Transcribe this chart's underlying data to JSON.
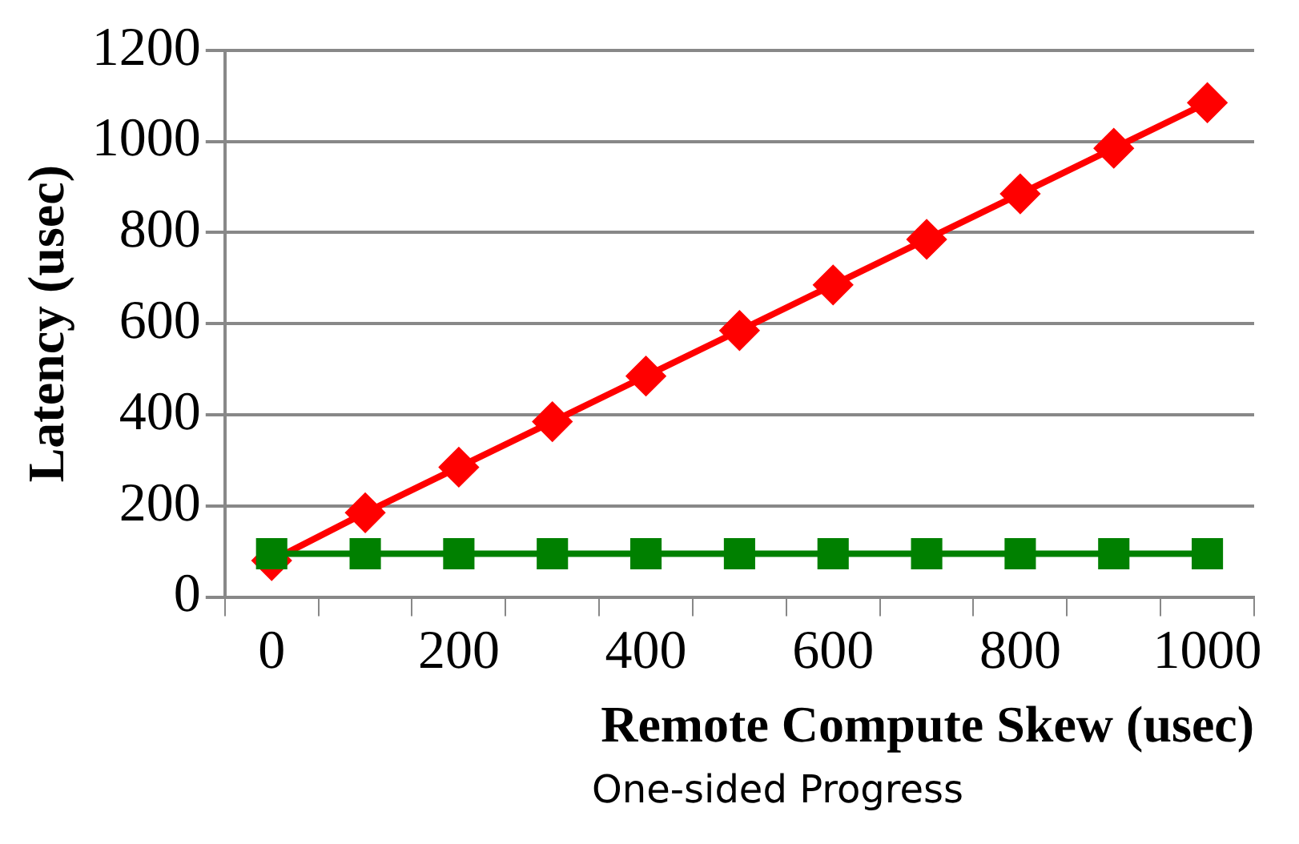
{
  "chart_data": {
    "type": "line",
    "xlabel": "Remote Compute Skew (usec)",
    "ylabel": "Latency (usec)",
    "annotations": [
      "One-sided Progress"
    ],
    "categories": [
      "0",
      null,
      "200",
      null,
      "400",
      null,
      "600",
      null,
      "800",
      null,
      "1000"
    ],
    "series": [
      {
        "color": "#ff0000",
        "values": [
          80,
          185,
          285,
          385,
          485,
          585,
          685,
          785,
          885,
          985,
          1085
        ],
        "marker": "diamond"
      },
      {
        "color": "#008000",
        "values": [
          95,
          95,
          95,
          95,
          95,
          95,
          95,
          95,
          95,
          95,
          95
        ],
        "marker": "square"
      }
    ],
    "ylim": [
      0,
      1200
    ],
    "yticks": [
      0,
      200,
      400,
      600,
      800,
      1000,
      1200
    ],
    "grid": "y",
    "legend": false,
    "line_style": "solid"
  }
}
